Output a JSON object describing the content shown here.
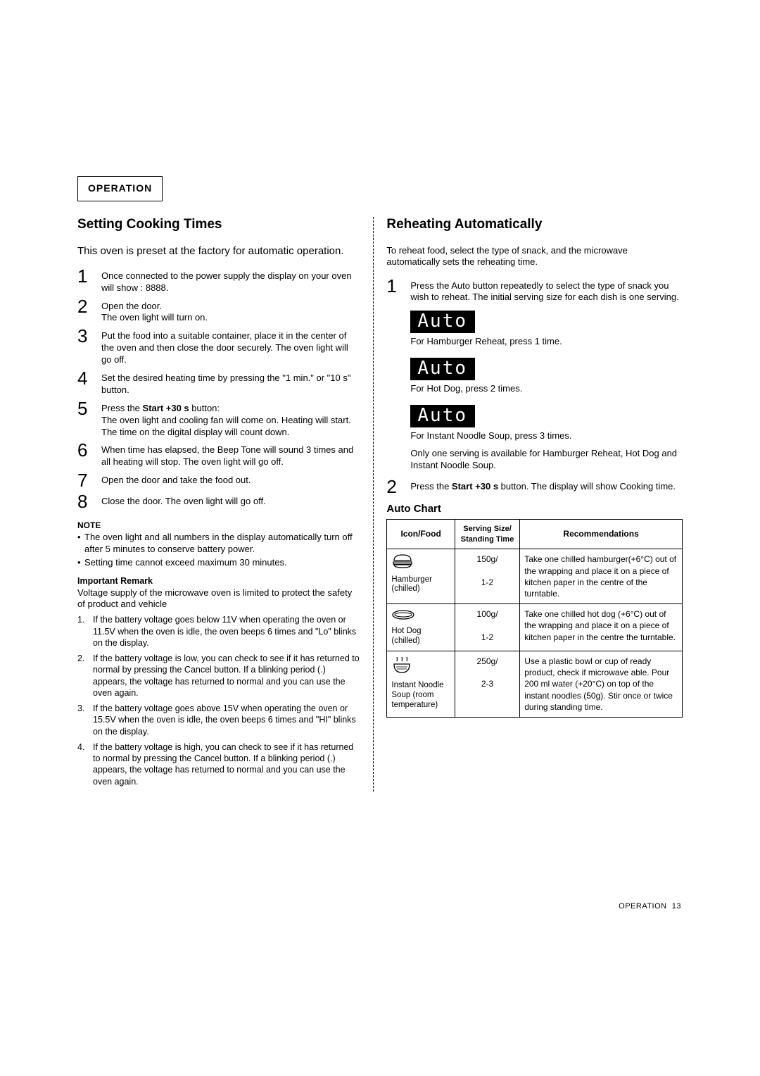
{
  "header": {
    "title": "OPERATION"
  },
  "left": {
    "heading": "Setting Cooking Times",
    "intro": "This oven is preset at the factory for automatic operation.",
    "steps": [
      "Once connected to the power supply the display on your oven will show : 8888.",
      "Open the door.\nThe oven light will turn on.",
      "Put the food into a suitable container, place it in the center of the oven and then close the door securely. The oven light will go off.",
      "Set the desired heating time by pressing the \"1 min.\" or \"10 s\" button.",
      "Press the Start +30 s button:\nThe oven light and cooling fan will come on. Heating will start. The time on the digital display will count down.",
      "When time has elapsed, the Beep Tone will sound 3 times and all heating will stop. The oven light will go off.",
      "Open the door and take the food out.",
      "Close the door. The oven light will go off."
    ],
    "note_label": "NOTE",
    "notes": [
      "The oven light and all numbers in the display automatically turn off after 5 minutes to conserve battery power.",
      "Setting time cannot exceed maximum 30 minutes."
    ],
    "remark_label": "Important Remark",
    "remark_text": "Voltage supply of the microwave oven is limited to protect the safety of product and vehicle",
    "remark_items": [
      "If the battery voltage goes below 11V when operating the oven or 11.5V when the oven is idle, the oven beeps 6 times and \"Lo\" blinks on the display.",
      "If the battery voltage is low, you can check to see if it has returned to normal by pressing the Cancel button. If a blinking period (.) appears, the voltage has returned to normal and you can use the oven again.",
      "If the battery voltage goes above 15V when operating the oven or 15.5V when the oven is idle, the oven beeps 6 times and \"HI\" blinks on the display.",
      "If the battery voltage is high, you can check to see if it has returned to normal by pressing the Cancel button. If a blinking period (.) appears, the voltage has returned to normal and you can use the oven again."
    ]
  },
  "right": {
    "heading": "Reheating Automatically",
    "intro": "To reheat food, select the type of snack, and the microwave automatically sets the reheating time.",
    "step1_text": "Press the Auto button repeatedly to select the type of snack you wish to reheat. The initial serving size for each dish is one serving.",
    "auto_word": "Auto",
    "auto_lines": [
      "For Hamburger Reheat, press 1 time.",
      "For Hot Dog, press 2 times.",
      "For Instant Noodle Soup, press 3 times."
    ],
    "serving_note": "Only one serving is available for Hamburger Reheat, Hot Dog and Instant Noodle Soup.",
    "step2_prefix": "Press the ",
    "step2_bold": "Start +30 s",
    "step2_suffix": " button. The display will show Cooking time.",
    "chart_title": "Auto Chart",
    "table": {
      "headers": {
        "c1": "Icon/Food",
        "c2": "Serving Size/\nStanding Time",
        "c3": "Recommendations"
      },
      "rows": [
        {
          "food": "Hamburger (chilled)",
          "size": "150g/",
          "stand": "1-2",
          "rec": "Take one chilled hamburger(+6°C) out of the wrapping and place it on a piece of kitchen paper in the centre of the turntable."
        },
        {
          "food": "Hot Dog (chilled)",
          "size": "100g/",
          "stand": "1-2",
          "rec": "Take one chilled hot dog (+6°C) out of the wrapping and place it on a piece of kitchen paper in the centre the turntable."
        },
        {
          "food": "Instant Noodle Soup (room temperature)",
          "size": "250g/",
          "stand": "2-3",
          "rec": "Use a plastic bowl or cup of ready product, check if microwave able. Pour 200 ml water (+20°C) on top of the instant noodles (50g). Stir once or twice during standing time."
        }
      ]
    }
  },
  "footer": {
    "label": "OPERATION",
    "page": "13"
  }
}
